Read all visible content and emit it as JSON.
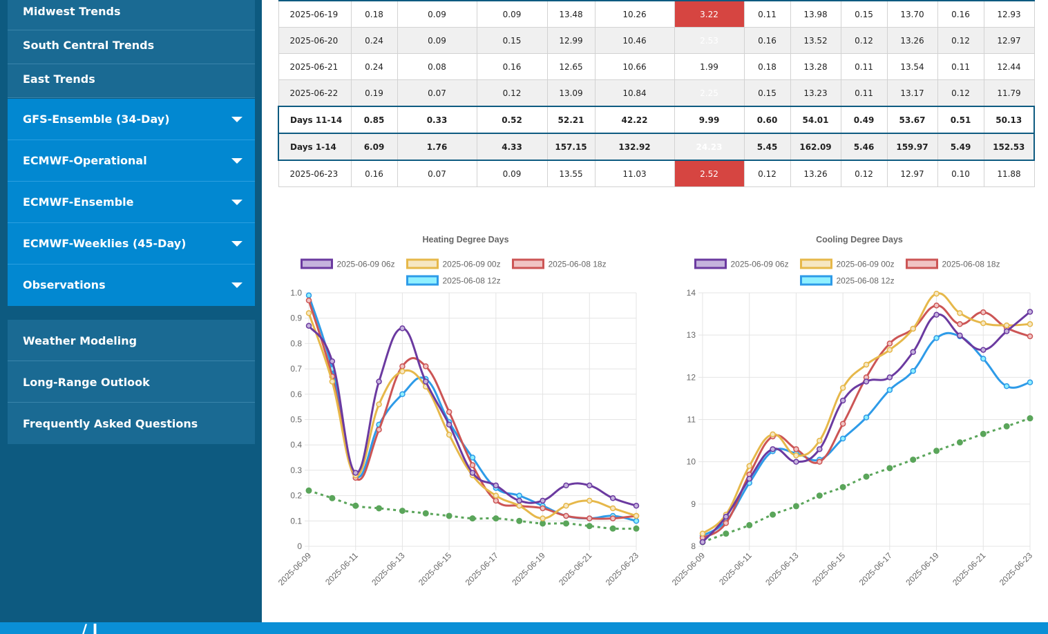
{
  "sidebar": {
    "trends": [
      "Midwest Trends",
      "South Central Trends",
      "East Trends"
    ],
    "models": [
      "GFS-Ensemble (34-Day)",
      "ECMWF-Operational",
      "ECMWF-Ensemble",
      "ECMWF-Weeklies (45-Day)",
      "Observations"
    ],
    "links": [
      "Weather Modeling",
      "Long-Range Outlook",
      "Frequently Asked Questions"
    ]
  },
  "table": {
    "rows": [
      {
        "cells": [
          "2025-06-19",
          "0.18",
          "0.09",
          "0.09",
          "13.48",
          "10.26",
          "3.22",
          "0.11",
          "13.98",
          "0.15",
          "13.70",
          "0.16",
          "12.93"
        ],
        "hl": true,
        "kind": "date"
      },
      {
        "cells": [
          "2025-06-20",
          "0.24",
          "0.09",
          "0.15",
          "12.99",
          "10.46",
          "2.53",
          "0.16",
          "13.52",
          "0.12",
          "13.26",
          "0.12",
          "12.97"
        ],
        "hl": true,
        "kind": "date"
      },
      {
        "cells": [
          "2025-06-21",
          "0.24",
          "0.08",
          "0.16",
          "12.65",
          "10.66",
          "1.99",
          "0.18",
          "13.28",
          "0.11",
          "13.54",
          "0.11",
          "12.44"
        ],
        "hl": false,
        "kind": "date"
      },
      {
        "cells": [
          "2025-06-22",
          "0.19",
          "0.07",
          "0.12",
          "13.09",
          "10.84",
          "2.25",
          "0.15",
          "13.23",
          "0.11",
          "13.17",
          "0.12",
          "11.79"
        ],
        "hl": true,
        "kind": "date"
      },
      {
        "cells": [
          "Days 11-14",
          "0.85",
          "0.33",
          "0.52",
          "52.21",
          "42.22",
          "9.99",
          "0.60",
          "54.01",
          "0.49",
          "53.67",
          "0.51",
          "50.13"
        ],
        "hl": false,
        "kind": "sum"
      },
      {
        "cells": [
          "Days 1-14",
          "6.09",
          "1.76",
          "4.33",
          "157.15",
          "132.92",
          "24.23",
          "5.45",
          "162.09",
          "5.46",
          "159.97",
          "5.49",
          "152.53"
        ],
        "hl": true,
        "kind": "sum"
      },
      {
        "cells": [
          "2025-06-23",
          "0.16",
          "0.07",
          "0.09",
          "13.55",
          "11.03",
          "2.52",
          "0.12",
          "13.26",
          "0.12",
          "12.97",
          "0.10",
          "11.88"
        ],
        "hl": true,
        "kind": "date"
      }
    ]
  },
  "footer": {
    "fragment": "/ l"
  },
  "colors": {
    "sidebar_bg": "#0d5a80",
    "accent_blue": "#0288d1",
    "highlight_red": "#d64541",
    "series_purple": "#6b3aa0",
    "series_gold": "#e6b84a",
    "series_red": "#cc5555",
    "series_cyan": "#2e9be8",
    "normal_green": "#5aa55a"
  },
  "chart_data": [
    {
      "type": "line",
      "title": "Heating Degree Days",
      "x": [
        "2025-06-09",
        "2025-06-10",
        "2025-06-11",
        "2025-06-12",
        "2025-06-13",
        "2025-06-14",
        "2025-06-15",
        "2025-06-16",
        "2025-06-17",
        "2025-06-18",
        "2025-06-19",
        "2025-06-20",
        "2025-06-21",
        "2025-06-22",
        "2025-06-23"
      ],
      "xticks": [
        "2025-06-09",
        "2025-06-11",
        "2025-06-13",
        "2025-06-15",
        "2025-06-17",
        "2025-06-19",
        "2025-06-21",
        "2025-06-23"
      ],
      "ylim": [
        0,
        1.0
      ],
      "yticks": [
        "0",
        "0.1",
        "0.2",
        "0.3",
        "0.4",
        "0.5",
        "0.6",
        "0.7",
        "0.8",
        "0.9",
        "1.0"
      ],
      "ytick_values": [
        0,
        0.1,
        0.2,
        0.3,
        0.4,
        0.5,
        0.6,
        0.7,
        0.8,
        0.9,
        1.0
      ],
      "legend_position": "top",
      "series": [
        {
          "name": "2025-06-09 06z",
          "color": "#6b3aa0",
          "fill": "#c5b3dd",
          "values": [
            0.87,
            0.73,
            0.29,
            0.65,
            0.86,
            0.65,
            0.48,
            0.29,
            0.24,
            0.18,
            0.18,
            0.24,
            0.24,
            0.19,
            0.16
          ]
        },
        {
          "name": "2025-06-09 00z",
          "color": "#e6b84a",
          "fill": "#f6e7c2",
          "values": [
            0.92,
            0.65,
            0.28,
            0.56,
            0.69,
            0.63,
            0.44,
            0.28,
            0.2,
            0.16,
            0.11,
            0.16,
            0.18,
            0.15,
            0.12
          ]
        },
        {
          "name": "2025-06-08 18z",
          "color": "#cc5555",
          "fill": "#f0c4c4",
          "values": [
            0.97,
            0.67,
            0.27,
            0.46,
            0.71,
            0.71,
            0.53,
            0.32,
            0.18,
            0.16,
            0.15,
            0.12,
            0.11,
            0.11,
            0.12
          ]
        },
        {
          "name": "2025-06-08 12z",
          "color": "#2e9be8",
          "fill": "#8ff0ff",
          "values": [
            0.99,
            0.7,
            0.28,
            0.48,
            0.6,
            0.66,
            0.49,
            0.35,
            0.23,
            0.2,
            0.16,
            0.12,
            0.11,
            0.12,
            0.1
          ]
        },
        {
          "name": "",
          "color": "#5aa55a",
          "dashed": true,
          "values": [
            0.22,
            0.19,
            0.16,
            0.15,
            0.14,
            0.13,
            0.12,
            0.11,
            0.11,
            0.1,
            0.09,
            0.09,
            0.08,
            0.07,
            0.07
          ]
        }
      ]
    },
    {
      "type": "line",
      "title": "Cooling Degree Days",
      "x": [
        "2025-06-09",
        "2025-06-10",
        "2025-06-11",
        "2025-06-12",
        "2025-06-13",
        "2025-06-14",
        "2025-06-15",
        "2025-06-16",
        "2025-06-17",
        "2025-06-18",
        "2025-06-19",
        "2025-06-20",
        "2025-06-21",
        "2025-06-22",
        "2025-06-23"
      ],
      "xticks": [
        "2025-06-09",
        "2025-06-11",
        "2025-06-13",
        "2025-06-15",
        "2025-06-17",
        "2025-06-19",
        "2025-06-21",
        "2025-06-23"
      ],
      "ylim": [
        8,
        14
      ],
      "yticks": [
        "8",
        "9",
        "10",
        "11",
        "12",
        "13",
        "14"
      ],
      "ytick_values": [
        8,
        9,
        10,
        11,
        12,
        13,
        14
      ],
      "legend_position": "top",
      "series": [
        {
          "name": "2025-06-09 06z",
          "color": "#6b3aa0",
          "fill": "#c5b3dd",
          "values": [
            8.1,
            8.7,
            9.6,
            10.3,
            10.0,
            10.3,
            11.45,
            11.9,
            12.0,
            12.6,
            13.48,
            12.99,
            12.65,
            13.09,
            13.55
          ]
        },
        {
          "name": "2025-06-09 00z",
          "color": "#e6b84a",
          "fill": "#f6e7c2",
          "values": [
            8.3,
            8.75,
            9.9,
            10.65,
            10.15,
            10.5,
            11.75,
            12.3,
            12.65,
            13.15,
            13.98,
            13.52,
            13.28,
            13.23,
            13.26
          ]
        },
        {
          "name": "2025-06-08 18z",
          "color": "#cc5555",
          "fill": "#f0c4c4",
          "values": [
            8.2,
            8.55,
            9.7,
            10.6,
            10.3,
            10.0,
            10.9,
            12.0,
            12.8,
            13.15,
            13.7,
            13.26,
            13.54,
            13.17,
            12.97
          ]
        },
        {
          "name": "2025-06-08 12z",
          "color": "#2e9be8",
          "fill": "#8ff0ff",
          "values": [
            8.25,
            8.6,
            9.5,
            10.25,
            10.2,
            10.05,
            10.55,
            11.05,
            11.7,
            12.15,
            12.93,
            12.97,
            12.44,
            11.79,
            11.88
          ]
        },
        {
          "name": "",
          "color": "#5aa55a",
          "dashed": true,
          "values": [
            8.1,
            8.3,
            8.5,
            8.75,
            8.95,
            9.2,
            9.4,
            9.65,
            9.85,
            10.05,
            10.26,
            10.46,
            10.66,
            10.84,
            11.03
          ]
        }
      ]
    }
  ]
}
